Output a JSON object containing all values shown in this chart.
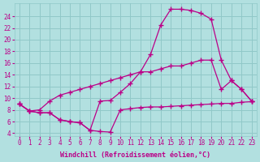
{
  "bg_color": "#b2e0e0",
  "grid_color": "#90c8c8",
  "line_color": "#bb0088",
  "marker": "+",
  "markersize": 4,
  "markeredgewidth": 1.0,
  "linewidth": 0.9,
  "xlabel": "Windchill (Refroidissement éolien,°C)",
  "xlabel_fontsize": 6.0,
  "tick_fontsize": 5.5,
  "xlim": [
    -0.5,
    23.5
  ],
  "ylim": [
    3.5,
    26.2
  ],
  "yticks": [
    4,
    6,
    8,
    10,
    12,
    14,
    16,
    18,
    20,
    22,
    24
  ],
  "xticks": [
    0,
    1,
    2,
    3,
    4,
    5,
    6,
    7,
    8,
    9,
    10,
    11,
    12,
    13,
    14,
    15,
    16,
    17,
    18,
    19,
    20,
    21,
    22,
    23
  ],
  "line1_x": [
    0,
    1,
    2,
    3,
    4,
    5,
    6,
    7,
    8,
    9,
    10,
    11,
    12,
    13,
    14,
    15,
    16,
    17,
    18,
    19,
    20,
    21,
    22,
    23
  ],
  "line1_y": [
    9.0,
    7.8,
    7.5,
    7.5,
    6.3,
    6.0,
    5.8,
    4.5,
    4.3,
    4.2,
    8.0,
    8.2,
    8.4,
    8.5,
    8.5,
    8.6,
    8.7,
    8.8,
    8.9,
    9.0,
    9.1,
    9.1,
    9.3,
    9.4
  ],
  "line2_x": [
    0,
    1,
    2,
    3,
    4,
    5,
    6,
    7,
    8,
    9,
    10,
    11,
    12,
    13,
    14,
    15,
    16,
    17,
    18,
    19,
    20,
    21,
    22,
    23
  ],
  "line2_y": [
    9.0,
    7.8,
    7.5,
    7.5,
    6.3,
    6.0,
    5.8,
    4.5,
    9.5,
    9.6,
    11.0,
    12.5,
    14.5,
    17.5,
    22.5,
    25.2,
    25.2,
    25.0,
    24.5,
    23.5,
    16.5,
    13.0,
    11.5,
    9.5
  ],
  "line3_x": [
    0,
    1,
    2,
    3,
    4,
    5,
    6,
    7,
    8,
    9,
    10,
    11,
    12,
    13,
    14,
    15,
    16,
    17,
    18,
    19,
    20,
    21,
    22,
    23
  ],
  "line3_y": [
    9.0,
    7.8,
    8.0,
    9.5,
    10.5,
    11.0,
    11.5,
    12.0,
    12.5,
    13.0,
    13.5,
    14.0,
    14.5,
    14.5,
    15.0,
    15.5,
    15.5,
    16.0,
    16.5,
    16.5,
    11.5,
    13.0,
    11.5,
    9.5
  ]
}
